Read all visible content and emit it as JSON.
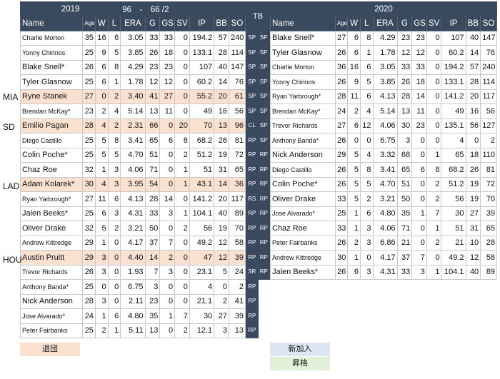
{
  "left_header": {
    "year": "2019",
    "record": "96　-　66 /2"
  },
  "right_header": {
    "year": "2020"
  },
  "tb_label": "TB",
  "columns": [
    "Name",
    "Age",
    "W",
    "L",
    "ERA",
    "G",
    "GS",
    "SV",
    "IP",
    "BB",
    "SO"
  ],
  "teams": {
    "mia": "MIA",
    "sd": "SD",
    "lad": "LAD",
    "hou": "HOU"
  },
  "left_rows": [
    {
      "name": "Charlie Morton",
      "age": "35",
      "w": "16",
      "l": "6",
      "era": "3.05",
      "g": "33",
      "gs": "33",
      "sv": "0",
      "ip": "194.2",
      "bb": "57",
      "so": "240"
    },
    {
      "name": "Yonny Chirinos",
      "age": "25",
      "w": "9",
      "l": "5",
      "era": "3.85",
      "g": "26",
      "gs": "18",
      "sv": "0",
      "ip": "133.1",
      "bb": "28",
      "so": "114"
    },
    {
      "name": "Blake Snell*",
      "age": "26",
      "w": "6",
      "l": "8",
      "era": "4.29",
      "g": "23",
      "gs": "23",
      "sv": "0",
      "ip": "107",
      "bb": "40",
      "so": "147"
    },
    {
      "name": "Tyler Glasnow",
      "age": "25",
      "w": "6",
      "l": "1",
      "era": "1.78",
      "g": "12",
      "gs": "12",
      "sv": "0",
      "ip": "60.2",
      "bb": "14",
      "so": "76"
    },
    {
      "name": "Ryne Stanek",
      "age": "27",
      "w": "0",
      "l": "2",
      "era": "3.40",
      "g": "41",
      "gs": "27",
      "sv": "0",
      "ip": "55.2",
      "bb": "20",
      "so": "61",
      "out": true
    },
    {
      "name": "Brendan McKay*",
      "age": "23",
      "w": "2",
      "l": "4",
      "era": "5.14",
      "g": "13",
      "gs": "11",
      "sv": "0",
      "ip": "49",
      "bb": "16",
      "so": "56"
    },
    {
      "name": "Emilio Pagan",
      "age": "28",
      "w": "4",
      "l": "2",
      "era": "2.31",
      "g": "66",
      "gs": "0",
      "sv": "20",
      "ip": "70",
      "bb": "13",
      "so": "96",
      "out": true
    },
    {
      "name": "Diego Castillo",
      "age": "25",
      "w": "5",
      "l": "8",
      "era": "3.41",
      "g": "65",
      "gs": "6",
      "sv": "8",
      "ip": "68.2",
      "bb": "26",
      "so": "81"
    },
    {
      "name": "Colin Poche*",
      "age": "25",
      "w": "5",
      "l": "5",
      "era": "4.70",
      "g": "51",
      "gs": "0",
      "sv": "2",
      "ip": "51.2",
      "bb": "19",
      "so": "72"
    },
    {
      "name": "Chaz Roe",
      "age": "32",
      "w": "1",
      "l": "3",
      "era": "4.06",
      "g": "71",
      "gs": "0",
      "sv": "1",
      "ip": "51",
      "bb": "31",
      "so": "65"
    },
    {
      "name": "Adam Kolarek*",
      "age": "30",
      "w": "4",
      "l": "3",
      "era": "3.95",
      "g": "54",
      "gs": "0",
      "sv": "1",
      "ip": "43.1",
      "bb": "14",
      "so": "36",
      "out": true
    },
    {
      "name": "Ryan Yarbrough*",
      "age": "27",
      "w": "11",
      "l": "6",
      "era": "4.13",
      "g": "28",
      "gs": "14",
      "sv": "0",
      "ip": "141.2",
      "bb": "20",
      "so": "117"
    },
    {
      "name": "Jalen Beeks*",
      "age": "25",
      "w": "6",
      "l": "3",
      "era": "4.31",
      "g": "33",
      "gs": "3",
      "sv": "1",
      "ip": "104.1",
      "bb": "40",
      "so": "89"
    },
    {
      "name": "Oliver Drake",
      "age": "32",
      "w": "5",
      "l": "2",
      "era": "3.21",
      "g": "50",
      "gs": "0",
      "sv": "2",
      "ip": "56",
      "bb": "19",
      "so": "70"
    },
    {
      "name": "Andrew Kittredge",
      "age": "29",
      "w": "1",
      "l": "0",
      "era": "4.17",
      "g": "37",
      "gs": "7",
      "sv": "0",
      "ip": "49.2",
      "bb": "12",
      "so": "58"
    },
    {
      "name": "Austin Pruitt",
      "age": "29",
      "w": "3",
      "l": "0",
      "era": "4.40",
      "g": "14",
      "gs": "2",
      "sv": "0",
      "ip": "47",
      "bb": "12",
      "so": "39",
      "out": true
    },
    {
      "name": "Trevor Richards",
      "age": "26",
      "w": "3",
      "l": "0",
      "era": "1.93",
      "g": "7",
      "gs": "3",
      "sv": "0",
      "ip": "23.1",
      "bb": "5",
      "so": "24"
    },
    {
      "name": "Anthony Banda*",
      "age": "25",
      "w": "0",
      "l": "0",
      "era": "6.75",
      "g": "3",
      "gs": "0",
      "sv": "0",
      "ip": "4",
      "bb": "0",
      "so": "2"
    },
    {
      "name": "Nick Anderson",
      "age": "28",
      "w": "3",
      "l": "0",
      "era": "2.11",
      "g": "23",
      "gs": "0",
      "sv": "0",
      "ip": "21.1",
      "bb": "2",
      "so": "41"
    },
    {
      "name": "Jose Alvarado*",
      "age": "24",
      "w": "1",
      "l": "6",
      "era": "4.80",
      "g": "35",
      "gs": "1",
      "sv": "7",
      "ip": "30",
      "bb": "27",
      "so": "39"
    },
    {
      "name": "Peter Fairbanks",
      "age": "25",
      "w": "2",
      "l": "1",
      "era": "5.11",
      "g": "13",
      "gs": "0",
      "sv": "2",
      "ip": "12.1",
      "bb": "3",
      "so": "13"
    }
  ],
  "tb_rows": [
    {
      "l": "SP",
      "r": "SP"
    },
    {
      "l": "SP",
      "r": "SP"
    },
    {
      "l": "SP",
      "r": "SP"
    },
    {
      "l": "SP",
      "r": "SP"
    },
    {
      "l": "SP",
      "r": "SP"
    },
    {
      "l": "SP",
      "r": "SP"
    },
    {
      "l": "CL",
      "r": "SP"
    },
    {
      "l": "RP",
      "r": "SP"
    },
    {
      "l": "RP",
      "r": "RP"
    },
    {
      "l": "RP",
      "r": "RP"
    },
    {
      "l": "RP",
      "r": "RP"
    },
    {
      "l": "RS",
      "r": "RP"
    },
    {
      "l": "RP",
      "r": "RP"
    },
    {
      "l": "RP",
      "r": "RP"
    },
    {
      "l": "RP",
      "r": "RP"
    },
    {
      "l": "RP",
      "r": "RP"
    },
    {
      "l": "SR",
      "r": "RP"
    },
    {
      "l": "RP",
      "r": ""
    },
    {
      "l": "RP",
      "r": ""
    },
    {
      "l": "RP",
      "r": ""
    },
    {
      "l": "RP",
      "r": ""
    }
  ],
  "right_rows": [
    {
      "name": "Blake Snell*",
      "age": "27",
      "w": "6",
      "l": "8",
      "era": "4.29",
      "g": "23",
      "gs": "23",
      "sv": "0",
      "ip": "107",
      "bb": "40",
      "so": "147"
    },
    {
      "name": "Tyler Glasnow",
      "age": "26",
      "w": "6",
      "l": "1",
      "era": "1.78",
      "g": "12",
      "gs": "12",
      "sv": "0",
      "ip": "60.2",
      "bb": "14",
      "so": "76"
    },
    {
      "name": "Charlie Morton",
      "age": "36",
      "w": "16",
      "l": "6",
      "era": "3.05",
      "g": "33",
      "gs": "33",
      "sv": "0",
      "ip": "194.2",
      "bb": "57",
      "so": "240"
    },
    {
      "name": "Yonny Chirinos",
      "age": "26",
      "w": "9",
      "l": "5",
      "era": "3.85",
      "g": "26",
      "gs": "18",
      "sv": "0",
      "ip": "133.1",
      "bb": "28",
      "so": "114"
    },
    {
      "name": "Ryan Yarbrough*",
      "age": "28",
      "w": "11",
      "l": "6",
      "era": "4.13",
      "g": "28",
      "gs": "14",
      "sv": "0",
      "ip": "141.2",
      "bb": "20",
      "so": "117"
    },
    {
      "name": "Brendan McKay*",
      "age": "24",
      "w": "2",
      "l": "4",
      "era": "5.14",
      "g": "13",
      "gs": "11",
      "sv": "0",
      "ip": "49",
      "bb": "16",
      "so": "56"
    },
    {
      "name": "Trevor Richards",
      "age": "27",
      "w": "6",
      "l": "12",
      "era": "4.06",
      "g": "30",
      "gs": "23",
      "sv": "0",
      "ip": "135.1",
      "bb": "56",
      "so": "127"
    },
    {
      "name": "Anthony Banda*",
      "age": "26",
      "w": "0",
      "l": "0",
      "era": "6.75",
      "g": "3",
      "gs": "0",
      "sv": "0",
      "ip": "4",
      "bb": "0",
      "so": "2"
    },
    {
      "name": "Nick Anderson",
      "age": "29",
      "w": "5",
      "l": "4",
      "era": "3.32",
      "g": "68",
      "gs": "0",
      "sv": "1",
      "ip": "65",
      "bb": "18",
      "so": "110"
    },
    {
      "name": "Diego Castillo",
      "age": "26",
      "w": "5",
      "l": "8",
      "era": "3.41",
      "g": "65",
      "gs": "6",
      "sv": "8",
      "ip": "68.2",
      "bb": "26",
      "so": "81"
    },
    {
      "name": "Colin Poche*",
      "age": "26",
      "w": "5",
      "l": "5",
      "era": "4.70",
      "g": "51",
      "gs": "0",
      "sv": "2",
      "ip": "51.2",
      "bb": "19",
      "so": "72"
    },
    {
      "name": "Oliver Drake",
      "age": "33",
      "w": "5",
      "l": "2",
      "era": "3.21",
      "g": "50",
      "gs": "0",
      "sv": "2",
      "ip": "56",
      "bb": "19",
      "so": "70"
    },
    {
      "name": "Jose Alvarado*",
      "age": "25",
      "w": "1",
      "l": "6",
      "era": "4.80",
      "g": "35",
      "gs": "1",
      "sv": "7",
      "ip": "30",
      "bb": "27",
      "so": "39"
    },
    {
      "name": "Chaz Roe",
      "age": "33",
      "w": "1",
      "l": "3",
      "era": "4.06",
      "g": "71",
      "gs": "0",
      "sv": "1",
      "ip": "51",
      "bb": "31",
      "so": "65"
    },
    {
      "name": "Peter Fairbanks",
      "age": "26",
      "w": "2",
      "l": "3",
      "era": "6.86",
      "g": "21",
      "gs": "0",
      "sv": "2",
      "ip": "21",
      "bb": "10",
      "so": "28"
    },
    {
      "name": "Andrew Kittredge",
      "age": "30",
      "w": "1",
      "l": "0",
      "era": "4.17",
      "g": "37",
      "gs": "7",
      "sv": "0",
      "ip": "49.2",
      "bb": "12",
      "so": "58"
    },
    {
      "name": "Jalen Beeks*",
      "age": "26",
      "w": "6",
      "l": "3",
      "era": "4.31",
      "g": "33",
      "gs": "3",
      "sv": "1",
      "ip": "104.1",
      "bb": "40",
      "so": "89"
    }
  ],
  "legend": {
    "departed": "退団",
    "new": "新加入",
    "promoted": "昇格"
  },
  "colors": {
    "header": "#3a4a5e",
    "departed": "#fbe1cf",
    "new": "#dde6f3",
    "promoted": "#e3f0d8"
  }
}
